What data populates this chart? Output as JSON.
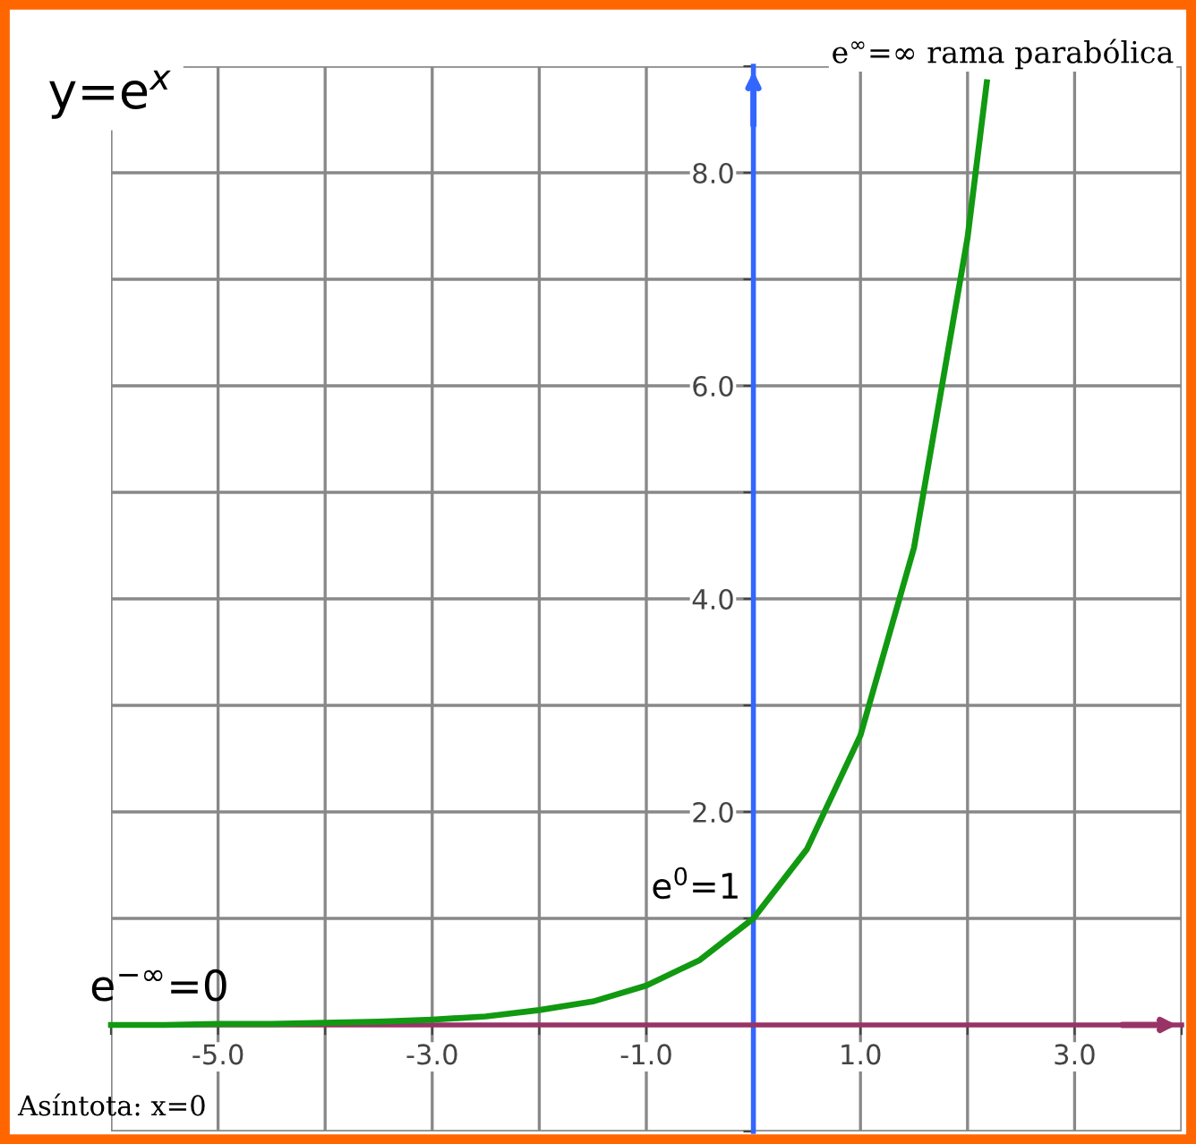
{
  "chart_data": {
    "type": "line",
    "title": "y=e$^{x}$",
    "series": [
      {
        "color": "#119911",
        "x": [
          -6,
          -5.5,
          -5,
          -4.5,
          -4,
          -3.5,
          -3,
          -2.5,
          -2,
          -1.5,
          -1,
          -0.5,
          0,
          0.5,
          1,
          1.5,
          2,
          2.18
        ],
        "values": [
          0.0,
          0.0,
          0.01,
          0.01,
          0.02,
          0.03,
          0.05,
          0.08,
          0.14,
          0.22,
          0.37,
          0.61,
          1.0,
          1.65,
          2.72,
          4.48,
          7.39,
          8.85
        ]
      }
    ],
    "xlim": [
      -6,
      4
    ],
    "ylim": [
      -1,
      9
    ],
    "xticks": [
      {
        "value": -6,
        "label": null
      },
      {
        "value": -5,
        "label": "-5.0"
      },
      {
        "value": -4,
        "label": null
      },
      {
        "value": -3,
        "label": "-3.0"
      },
      {
        "value": -2,
        "label": null
      },
      {
        "value": -1,
        "label": "-1.0"
      },
      {
        "value": 0,
        "label": null
      },
      {
        "value": 1,
        "label": "1.0"
      },
      {
        "value": 2,
        "label": null
      },
      {
        "value": 3,
        "label": "3.0"
      },
      {
        "value": 4,
        "label": null
      }
    ],
    "yticks": [
      {
        "value": -1,
        "label": null
      },
      {
        "value": 0,
        "label": null
      },
      {
        "value": 1,
        "label": null
      },
      {
        "value": 2,
        "label": "2.0"
      },
      {
        "value": 3,
        "label": null
      },
      {
        "value": 4,
        "label": "4.0"
      },
      {
        "value": 5,
        "label": null
      },
      {
        "value": 6,
        "label": "6.0"
      },
      {
        "value": 7,
        "label": null
      },
      {
        "value": 8,
        "label": "8.0"
      },
      {
        "value": 9,
        "label": null
      }
    ],
    "grid": true,
    "marker": "none",
    "line_style": "solid",
    "annotations": [
      "e$^{∞}$=∞ rama parabólica",
      {
        "text": "e$^{0}$=1",
        "x": 0,
        "y": 1
      },
      "e$^{−∞}$=0",
      "Asíntota: x=0"
    ]
  }
}
